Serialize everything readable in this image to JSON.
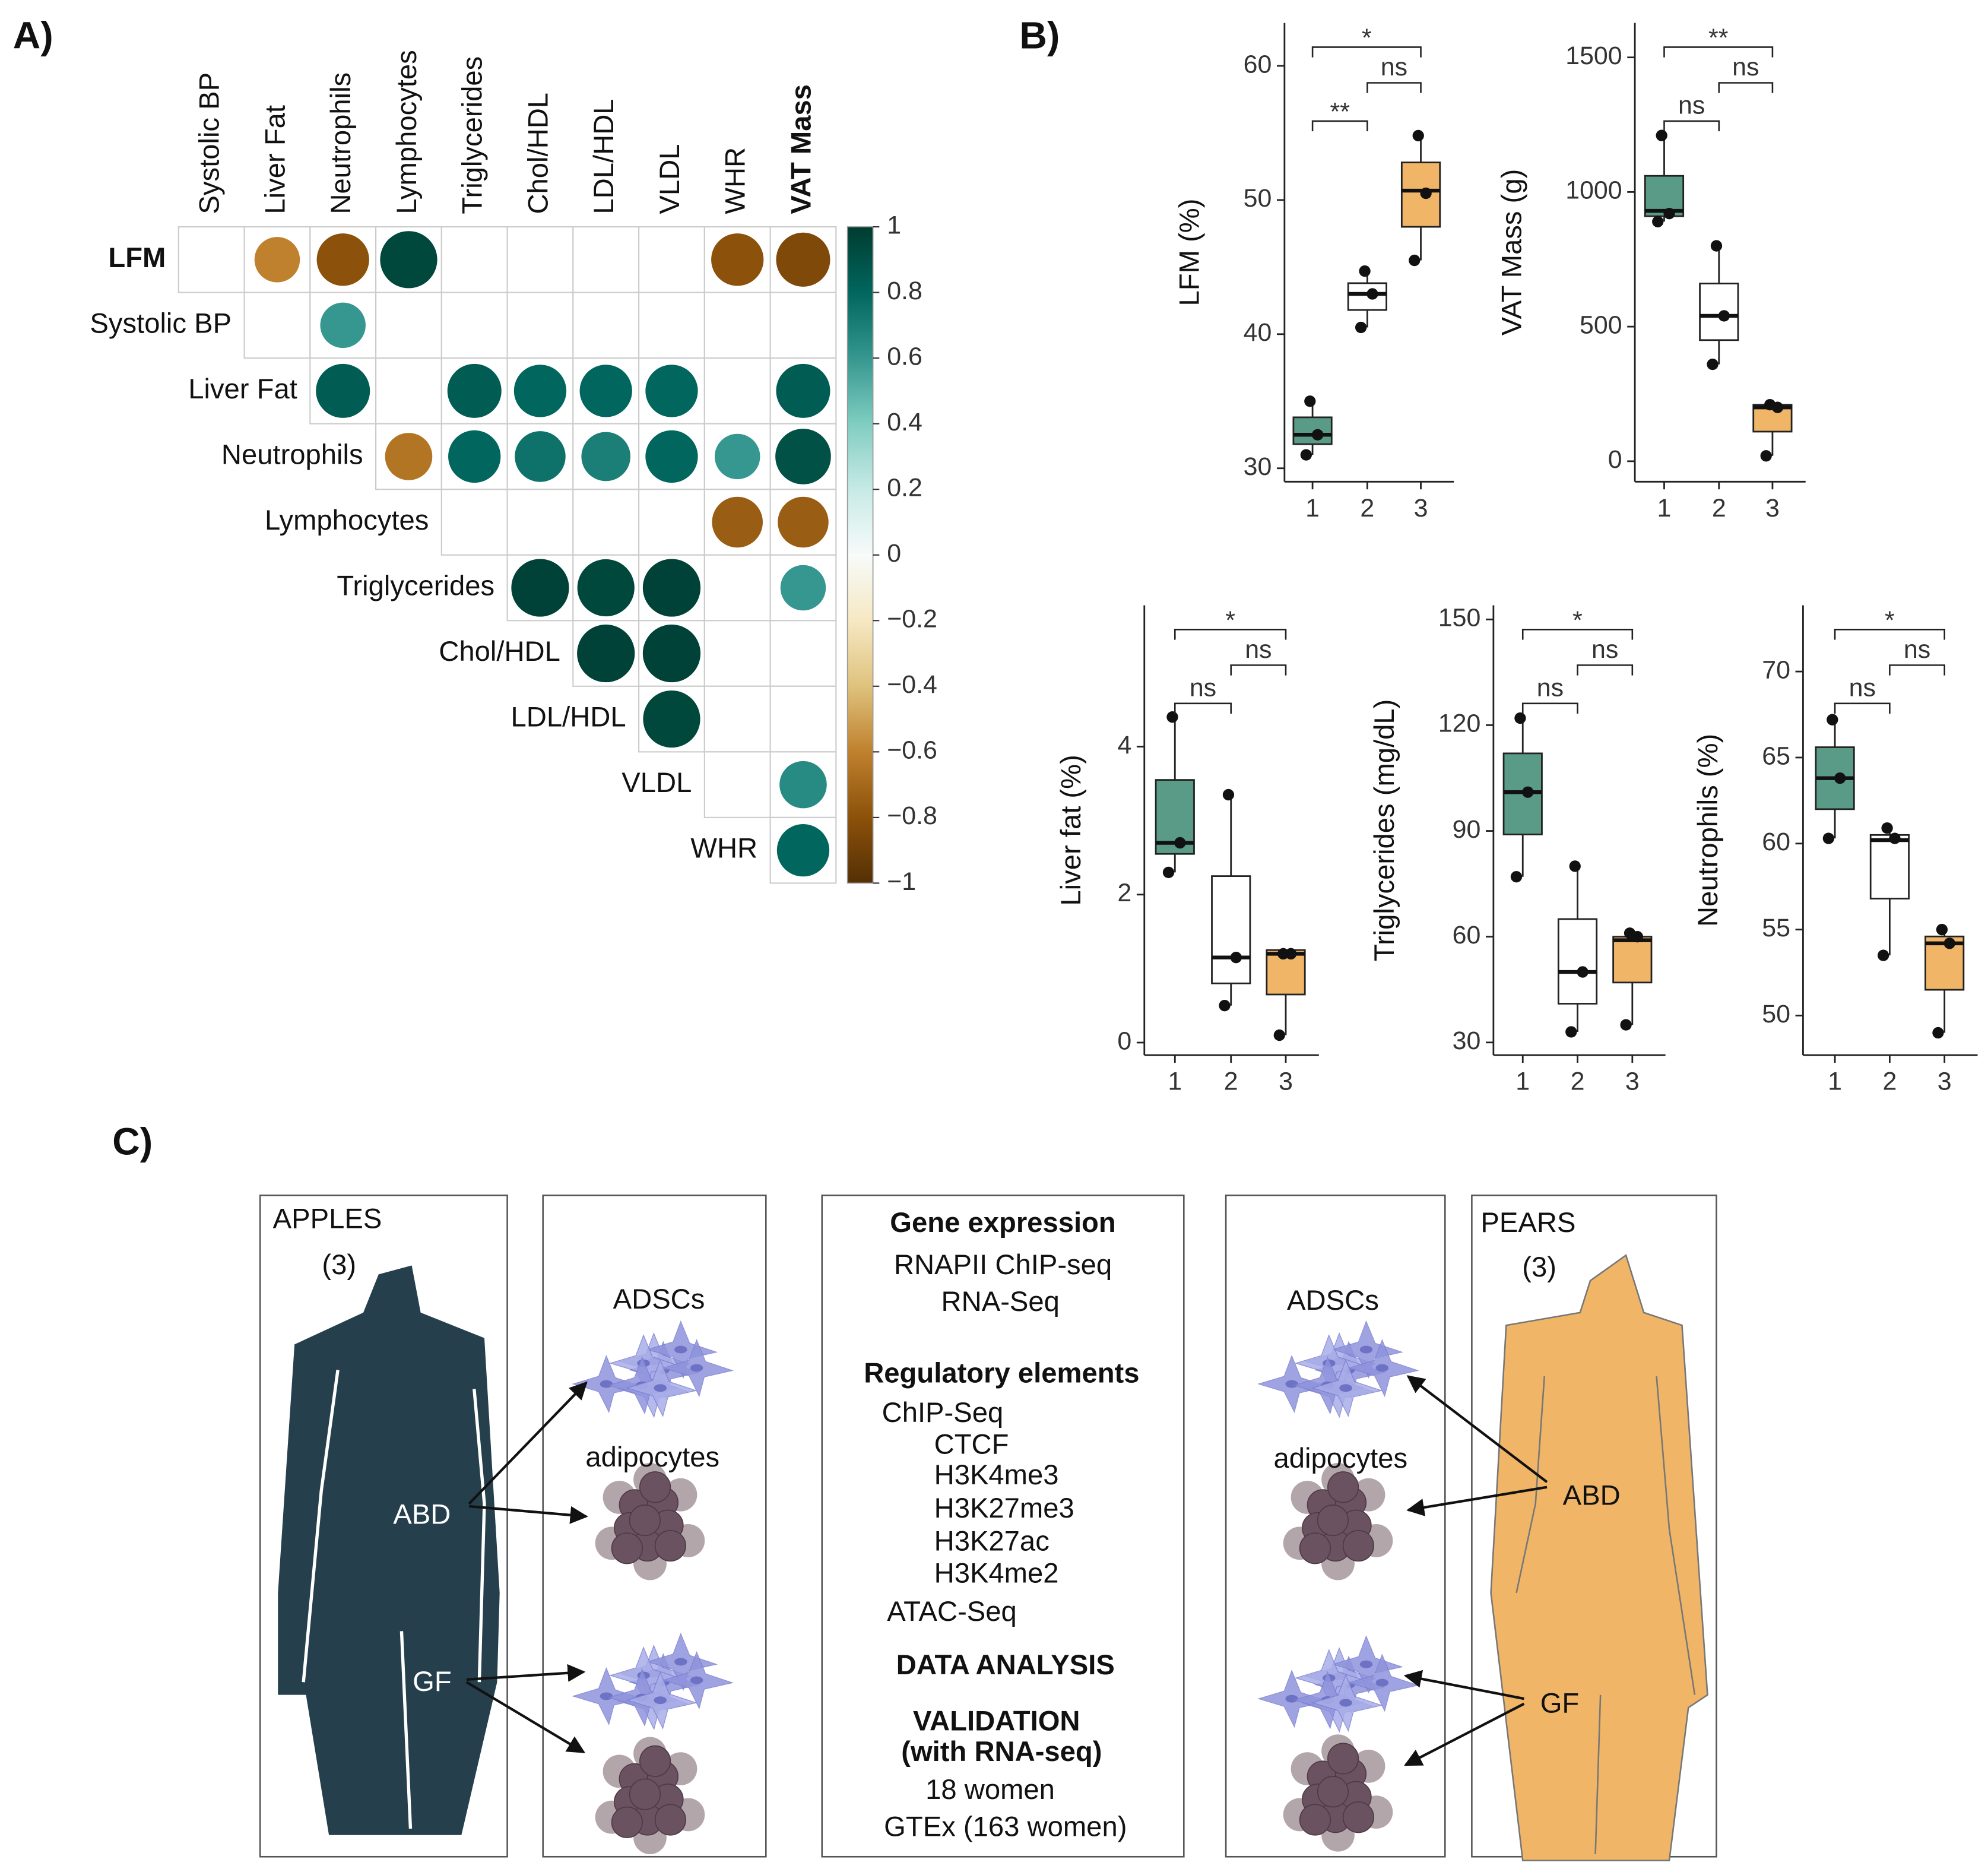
{
  "chart_data": [
    {
      "type": "corrmatrix",
      "label": "A)",
      "rows": [
        "LFM",
        "Systolic BP",
        "Liver Fat",
        "Neutrophils",
        "Lymphocytes",
        "Triglycerides",
        "Chol/HDL",
        "LDL/HDL",
        "VLDL",
        "WHR"
      ],
      "columns": [
        "Systolic BP",
        "Liver Fat",
        "Neutrophils",
        "Lymphocytes",
        "Triglycerides",
        "Chol/HDL",
        "LDL/HDL",
        "VLDL",
        "WHR",
        "VAT Mass"
      ],
      "values": [
        [
          null,
          -0.6,
          -0.8,
          0.95,
          null,
          null,
          null,
          null,
          -0.8,
          -0.85
        ],
        [
          null,
          null,
          0.6,
          null,
          null,
          null,
          null,
          null,
          null,
          null
        ],
        [
          null,
          null,
          0.85,
          null,
          0.85,
          0.8,
          0.8,
          0.8,
          null,
          0.85
        ],
        [
          null,
          null,
          null,
          -0.65,
          0.8,
          0.75,
          0.7,
          0.8,
          0.6,
          0.9
        ],
        [
          null,
          null,
          null,
          null,
          null,
          null,
          null,
          null,
          -0.75,
          -0.75
        ],
        [
          null,
          null,
          null,
          null,
          null,
          0.97,
          0.95,
          0.97,
          null,
          0.6
        ],
        [
          null,
          null,
          null,
          null,
          null,
          null,
          0.97,
          0.97,
          null,
          null
        ],
        [
          null,
          null,
          null,
          null,
          null,
          null,
          null,
          0.95,
          null,
          null
        ],
        [
          null,
          null,
          null,
          null,
          null,
          null,
          null,
          null,
          null,
          0.65
        ],
        [
          null,
          null,
          null,
          null,
          null,
          null,
          null,
          null,
          null,
          0.8
        ]
      ],
      "colorscale": [
        "#543005",
        "#8c510a",
        "#bf812d",
        "#dfc27d",
        "#f6e8c3",
        "#f7fbfa",
        "#c7eae5",
        "#80cdc1",
        "#35978f",
        "#01665e",
        "#003c30"
      ],
      "clim": [
        -1,
        1
      ],
      "cticks": [
        1,
        0.8,
        0.6,
        0.4,
        0.2,
        0,
        {
          "value": -0.2,
          "label": "−0.2"
        },
        {
          "value": -0.4,
          "label": "−0.4"
        },
        {
          "value": -0.6,
          "label": "−0.6"
        },
        {
          "value": -0.8,
          "label": "−0.8"
        },
        {
          "value": -1,
          "label": "−1"
        }
      ]
    },
    {
      "type": "box",
      "label": "B)",
      "ylabel": "LFM (%)",
      "categories": [
        "1",
        "2",
        "3"
      ],
      "colors": [
        "#5a9b88",
        "#ffffff",
        "#f0b566"
      ],
      "ylim": [
        29,
        63.2
      ],
      "yticks": [
        30,
        40,
        50,
        60
      ],
      "boxes": [
        {
          "min": 31,
          "q1": 31.8,
          "median": 32.5,
          "q3": 33.8,
          "max": 35,
          "points": [
            31,
            32.5,
            35
          ]
        },
        {
          "min": 40.5,
          "q1": 41.8,
          "median": 43,
          "q3": 43.8,
          "max": 44.7,
          "points": [
            40.5,
            43,
            44.7
          ]
        },
        {
          "min": 45.5,
          "q1": 48,
          "median": 50.7,
          "q3": 52.8,
          "max": 54.8,
          "points": [
            45.5,
            50.5,
            54.8
          ]
        }
      ],
      "brackets": [
        {
          "between": [
            "1",
            "2"
          ],
          "label": "**"
        },
        {
          "between": [
            "2",
            "3"
          ],
          "label": "ns"
        },
        {
          "between": [
            "1",
            "3"
          ],
          "label": "*"
        }
      ]
    },
    {
      "type": "box",
      "ylabel": "VAT Mass (g)",
      "categories": [
        "1",
        "2",
        "3"
      ],
      "colors": [
        "#5a9b88",
        "#ffffff",
        "#f0b566"
      ],
      "ylim": [
        -76,
        1628
      ],
      "yticks": [
        0,
        500,
        1000,
        1500
      ],
      "boxes": [
        {
          "min": 890,
          "q1": 910,
          "median": 930,
          "q3": 1060,
          "max": 1210,
          "points": [
            890,
            920,
            1210
          ]
        },
        {
          "min": 360,
          "q1": 450,
          "median": 540,
          "q3": 660,
          "max": 800,
          "points": [
            360,
            540,
            800
          ]
        },
        {
          "min": 20,
          "q1": 110,
          "median": 200,
          "q3": 210,
          "max": 210,
          "points": [
            20,
            200,
            210
          ]
        }
      ],
      "brackets": [
        {
          "between": [
            "1",
            "2"
          ],
          "label": "ns"
        },
        {
          "between": [
            "2",
            "3"
          ],
          "label": "ns"
        },
        {
          "between": [
            "1",
            "3"
          ],
          "label": "**"
        }
      ]
    },
    {
      "type": "box",
      "ylabel": "Liver fat (%)",
      "categories": [
        "1",
        "2",
        "3"
      ],
      "colors": [
        "#5a9b88",
        "#ffffff",
        "#f0b566"
      ],
      "ylim": [
        -0.17,
        5.91
      ],
      "yticks": [
        0,
        2,
        4
      ],
      "boxes": [
        {
          "min": 2.3,
          "q1": 2.55,
          "median": 2.7,
          "q3": 3.55,
          "max": 4.4,
          "points": [
            2.3,
            2.7,
            4.4
          ]
        },
        {
          "min": 0.5,
          "q1": 0.8,
          "median": 1.15,
          "q3": 2.25,
          "max": 3.35,
          "points": [
            0.5,
            1.15,
            3.35
          ]
        },
        {
          "min": 0.1,
          "q1": 0.65,
          "median": 1.2,
          "q3": 1.25,
          "max": 1.25,
          "points": [
            0.1,
            1.2,
            1.2
          ]
        }
      ],
      "brackets": [
        {
          "between": [
            "1",
            "2"
          ],
          "label": "ns"
        },
        {
          "between": [
            "2",
            "3"
          ],
          "label": "ns"
        },
        {
          "between": [
            "1",
            "3"
          ],
          "label": "*"
        }
      ]
    },
    {
      "type": "box",
      "ylabel": "Triglycerides (mg/dL)",
      "categories": [
        "1",
        "2",
        "3"
      ],
      "colors": [
        "#5a9b88",
        "#ffffff",
        "#f0b566"
      ],
      "ylim": [
        26.4,
        154
      ],
      "yticks": [
        30,
        60,
        90,
        120,
        150
      ],
      "boxes": [
        {
          "min": 77,
          "q1": 89,
          "median": 101,
          "q3": 112,
          "max": 122,
          "points": [
            77,
            101,
            122
          ]
        },
        {
          "min": 33,
          "q1": 41,
          "median": 50,
          "q3": 65,
          "max": 80,
          "points": [
            33,
            50,
            80
          ]
        },
        {
          "min": 35,
          "q1": 47,
          "median": 59,
          "q3": 60,
          "max": 61,
          "points": [
            35,
            60,
            61
          ]
        }
      ],
      "brackets": [
        {
          "between": [
            "1",
            "2"
          ],
          "label": "ns"
        },
        {
          "between": [
            "2",
            "3"
          ],
          "label": "ns"
        },
        {
          "between": [
            "1",
            "3"
          ],
          "label": "*"
        }
      ]
    },
    {
      "type": "box",
      "ylabel": "Neutrophils (%)",
      "categories": [
        "1",
        "2",
        "3"
      ],
      "colors": [
        "#5a9b88",
        "#ffffff",
        "#f0b566"
      ],
      "ylim": [
        47.7,
        73.85
      ],
      "yticks": [
        50,
        55,
        60,
        65,
        70
      ],
      "boxes": [
        {
          "min": 60.3,
          "q1": 62,
          "median": 63.8,
          "q3": 65.6,
          "max": 67.2,
          "points": [
            60.3,
            63.8,
            67.2
          ]
        },
        {
          "min": 53.5,
          "q1": 56.8,
          "median": 60.2,
          "q3": 60.5,
          "max": 60.9,
          "points": [
            53.5,
            60.3,
            60.9
          ]
        },
        {
          "min": 49,
          "q1": 51.5,
          "median": 54.2,
          "q3": 54.6,
          "max": 55,
          "points": [
            49,
            54.2,
            55
          ]
        }
      ],
      "brackets": [
        {
          "between": [
            "1",
            "2"
          ],
          "label": "ns"
        },
        {
          "between": [
            "2",
            "3"
          ],
          "label": "ns"
        },
        {
          "between": [
            "1",
            "3"
          ],
          "label": "*"
        }
      ]
    }
  ],
  "diagram": {
    "label": "C)",
    "apples": {
      "title": "APPLES",
      "count": "(3)",
      "sites": [
        "ABD",
        "GF"
      ],
      "cells": [
        "ADSCs",
        "adipocytes"
      ]
    },
    "pears": {
      "title": "PEARS",
      "count": "(3)",
      "sites": [
        "ABD",
        "GF"
      ],
      "cells": [
        "ADSCs",
        "adipocytes"
      ]
    },
    "methods": [
      {
        "text": "Gene expression",
        "style": "heading"
      },
      {
        "text": "RNAPII ChIP-seq"
      },
      {
        "text": "RNA-Seq"
      },
      {
        "text": "Regulatory elements",
        "style": "heading"
      },
      {
        "text": "ChIP-Seq"
      },
      {
        "text": "CTCF"
      },
      {
        "text": "H3K4me3"
      },
      {
        "text": "H3K27me3"
      },
      {
        "text": "H3K27ac"
      },
      {
        "text": "H3K4me2"
      },
      {
        "text": "ATAC-Seq"
      },
      {
        "text": "DATA ANALYSIS",
        "style": "heading"
      },
      {
        "text": "VALIDATION",
        "style": "heading"
      },
      {
        "text": "(with RNA-seq)",
        "style": "heading"
      },
      {
        "text": "18 women"
      },
      {
        "text": "GTEx (163 women)"
      }
    ]
  }
}
